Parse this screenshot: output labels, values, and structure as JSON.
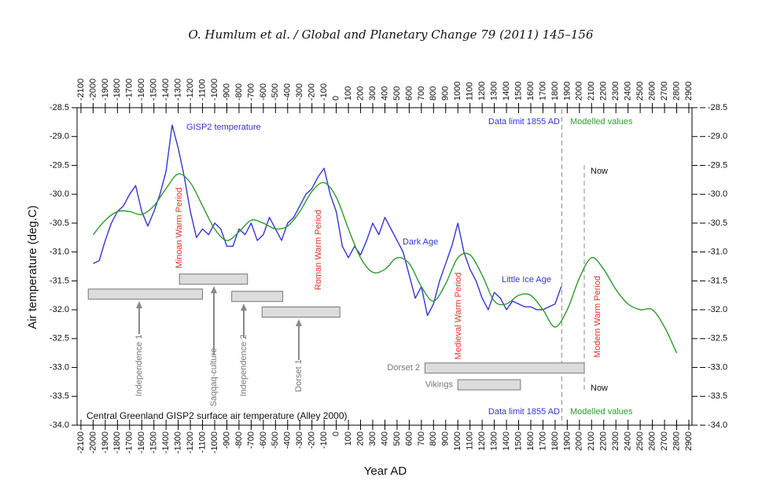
{
  "header": "O. Humlum et al. / Global and Planetary Change 79 (2011) 145–156",
  "chart_data": {
    "type": "line",
    "title": "Central Greenland GISP2 surface air temperature (Alley 2000)",
    "x_label": "Year AD",
    "y_label": "Air temperature (deg.C)",
    "xlim": [
      -2132,
      2926
    ],
    "ylim": [
      -34.0,
      -28.5
    ],
    "xticks": [
      -2100,
      -2000,
      -1900,
      -1800,
      -1700,
      -1600,
      -1500,
      -1400,
      -1300,
      -1200,
      -1100,
      -1000,
      -900,
      -800,
      -700,
      -600,
      -500,
      -400,
      -300,
      -200,
      -100,
      0,
      100,
      200,
      300,
      400,
      500,
      600,
      700,
      800,
      900,
      1000,
      1100,
      1200,
      1300,
      1400,
      1500,
      1600,
      1700,
      1800,
      1900,
      2000,
      2100,
      2200,
      2300,
      2400,
      2500,
      2600,
      2700,
      2800,
      2900
    ],
    "yticks": [
      -28.5,
      {
        "value": -29.0,
        "label": "-29.0"
      },
      -29.5,
      {
        "value": -30.0,
        "label": "-30.0"
      },
      -30.5,
      {
        "value": -31.0,
        "label": "-31.0"
      },
      -31.5,
      {
        "value": -32.0,
        "label": "-32.0"
      },
      -32.5,
      {
        "value": -33.0,
        "label": "-33.0"
      },
      -33.5,
      {
        "value": -34.0,
        "label": "-34.0"
      }
    ],
    "series": [
      {
        "name": "GISP2 temperature",
        "color": "#3535d8",
        "x": [
          -2000,
          -1950,
          -1900,
          -1850,
          -1800,
          -1750,
          -1700,
          -1650,
          -1600,
          -1550,
          -1500,
          -1450,
          -1400,
          -1350,
          -1300,
          -1250,
          -1200,
          -1150,
          -1100,
          -1050,
          -1000,
          -950,
          -900,
          -850,
          -800,
          -750,
          -700,
          -650,
          -600,
          -550,
          -500,
          -450,
          -400,
          -350,
          -300,
          -250,
          -200,
          -150,
          -100,
          -50,
          0,
          50,
          100,
          150,
          200,
          250,
          300,
          350,
          400,
          450,
          500,
          550,
          600,
          650,
          700,
          750,
          800,
          850,
          900,
          950,
          1000,
          1050,
          1100,
          1150,
          1200,
          1250,
          1300,
          1350,
          1400,
          1450,
          1500,
          1550,
          1600,
          1650,
          1700,
          1750,
          1800,
          1850
        ],
        "values": [
          -31.2,
          -31.15,
          -30.8,
          -30.5,
          -30.3,
          -30.2,
          -30.0,
          -29.85,
          -30.3,
          -30.55,
          -30.3,
          -30.0,
          -29.6,
          -28.8,
          -29.2,
          -29.7,
          -30.3,
          -30.75,
          -30.6,
          -30.7,
          -30.5,
          -30.6,
          -30.9,
          -30.9,
          -30.6,
          -30.7,
          -30.5,
          -30.8,
          -30.7,
          -30.4,
          -30.6,
          -30.8,
          -30.5,
          -30.4,
          -30.2,
          -30.0,
          -29.9,
          -29.7,
          -29.55,
          -30.0,
          -30.3,
          -30.9,
          -31.1,
          -30.9,
          -31.05,
          -30.8,
          -30.5,
          -30.7,
          -30.4,
          -30.6,
          -30.8,
          -31.0,
          -31.4,
          -31.8,
          -31.6,
          -32.1,
          -31.9,
          -31.5,
          -31.2,
          -30.9,
          -30.5,
          -31.0,
          -31.3,
          -31.5,
          -31.8,
          -32.0,
          -31.7,
          -31.8,
          -32.0,
          -31.85,
          -31.9,
          -31.95,
          -31.95,
          -32.0,
          -32.0,
          -31.95,
          -31.9,
          -31.6
        ]
      },
      {
        "name": "Modelled values",
        "color": "#2e9a2e",
        "x": [
          -2000,
          -1900,
          -1800,
          -1700,
          -1600,
          -1500,
          -1400,
          -1300,
          -1200,
          -1100,
          -1000,
          -900,
          -800,
          -700,
          -600,
          -500,
          -400,
          -300,
          -200,
          -100,
          0,
          100,
          200,
          300,
          400,
          500,
          600,
          700,
          800,
          900,
          1000,
          1100,
          1200,
          1300,
          1400,
          1500,
          1600,
          1700,
          1800,
          1900,
          2000,
          2100,
          2200,
          2300,
          2400,
          2500,
          2600,
          2700,
          2800
        ],
        "values": [
          -30.7,
          -30.45,
          -30.3,
          -30.3,
          -30.35,
          -30.2,
          -29.9,
          -29.65,
          -29.8,
          -30.2,
          -30.6,
          -30.8,
          -30.65,
          -30.45,
          -30.5,
          -30.6,
          -30.55,
          -30.3,
          -29.95,
          -29.8,
          -30.05,
          -30.6,
          -31.1,
          -31.35,
          -31.3,
          -31.1,
          -31.2,
          -31.6,
          -31.85,
          -31.55,
          -31.1,
          -31.05,
          -31.4,
          -31.85,
          -31.9,
          -31.75,
          -31.75,
          -32.0,
          -32.3,
          -32.0,
          -31.45,
          -31.1,
          -31.3,
          -31.65,
          -31.9,
          -32.0,
          -32.0,
          -32.3,
          -32.75
        ]
      }
    ],
    "periods": [
      {
        "name": "Independence 1",
        "start": -2040,
        "end": -1100,
        "level": -31.73
      },
      {
        "name": "Saqqaq-culture",
        "start": -1290,
        "end": -730,
        "level": -31.47
      },
      {
        "name": "Independence 2",
        "start": -860,
        "end": -440,
        "level": -31.77
      },
      {
        "name": "Dorset 1",
        "start": -610,
        "end": 30,
        "level": -32.04
      },
      {
        "name": "Dorset 2",
        "start": 730,
        "end": 2040,
        "level": -33.01
      },
      {
        "name": "Vikings",
        "start": 1000,
        "end": 1515,
        "level": -33.3
      }
    ],
    "reference_lines": [
      {
        "x": 1855,
        "label": "Data limit 1855 AD"
      },
      {
        "x": 2040,
        "label": "Now"
      }
    ],
    "annotations": [
      "Minoan Warm Period",
      "Roman Warm Period",
      "Dark Age",
      "Medieval Warm Period",
      "Little Ice Age",
      "Modern Warm Period"
    ]
  }
}
